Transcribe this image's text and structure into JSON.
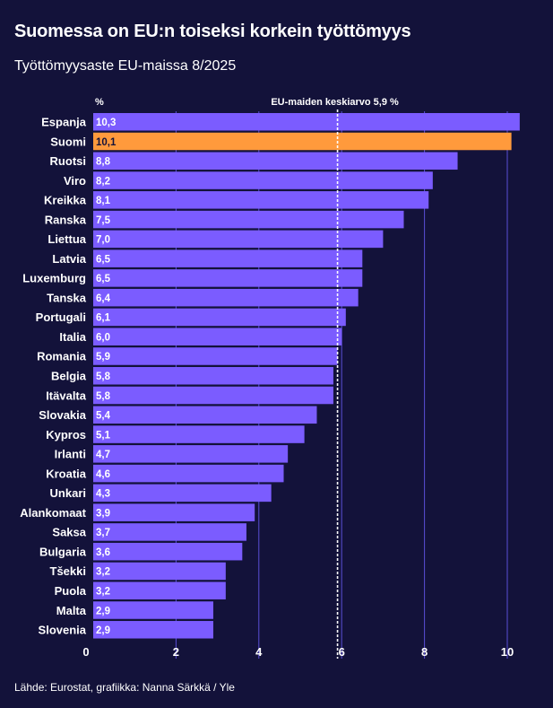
{
  "title": "Suomessa on EU:n toiseksi korkein työttömyys",
  "subtitle": "Työttömyysaste EU-maissa 8/2025",
  "source": "Lähde: Eurostat, grafiikka: Nanna Särkkä / Yle",
  "colors": {
    "background": "#13123a",
    "bar": "#7b5cff",
    "highlight": "#ff9a3c",
    "grid": "#5a4fd6",
    "text": "#ffffff"
  },
  "chart_data": {
    "type": "bar",
    "orientation": "horizontal",
    "categories": [
      "Espanja",
      "Suomi",
      "Ruotsi",
      "Viro",
      "Kreikka",
      "Ranska",
      "Liettua",
      "Latvia",
      "Luxemburg",
      "Tanska",
      "Portugali",
      "Italia",
      "Romania",
      "Belgia",
      "Itävalta",
      "Slovakia",
      "Kypros",
      "Irlanti",
      "Kroatia",
      "Unkari",
      "Alankomaat",
      "Saksa",
      "Bulgaria",
      "Tšekki",
      "Puola",
      "Malta",
      "Slovenia"
    ],
    "values": [
      10.3,
      10.1,
      8.8,
      8.2,
      8.1,
      7.5,
      7.0,
      6.5,
      6.5,
      6.4,
      6.1,
      6.0,
      5.9,
      5.8,
      5.8,
      5.4,
      5.1,
      4.7,
      4.6,
      4.3,
      3.9,
      3.7,
      3.6,
      3.2,
      3.2,
      2.9,
      2.9
    ],
    "value_labels": [
      "10,3",
      "10,1",
      "8,8",
      "8,2",
      "8,1",
      "7,5",
      "7,0",
      "6,5",
      "6,5",
      "6,4",
      "6,1",
      "6,0",
      "5,9",
      "5,8",
      "5,8",
      "5,4",
      "5,1",
      "4,7",
      "4,6",
      "4,3",
      "3,9",
      "3,7",
      "3,6",
      "3,2",
      "3,2",
      "2,9",
      "2,9"
    ],
    "highlight_category": "Suomi",
    "xlim": [
      0,
      10.3
    ],
    "xticks": [
      0,
      2,
      4,
      6,
      8,
      10
    ],
    "xtick_labels": [
      "0",
      "2",
      "4",
      "6",
      "8",
      "10"
    ],
    "unit_label": "%",
    "reference_line": {
      "value": 5.9,
      "label": "EU-maiden keskiarvo 5,9 %"
    },
    "grid": true
  }
}
